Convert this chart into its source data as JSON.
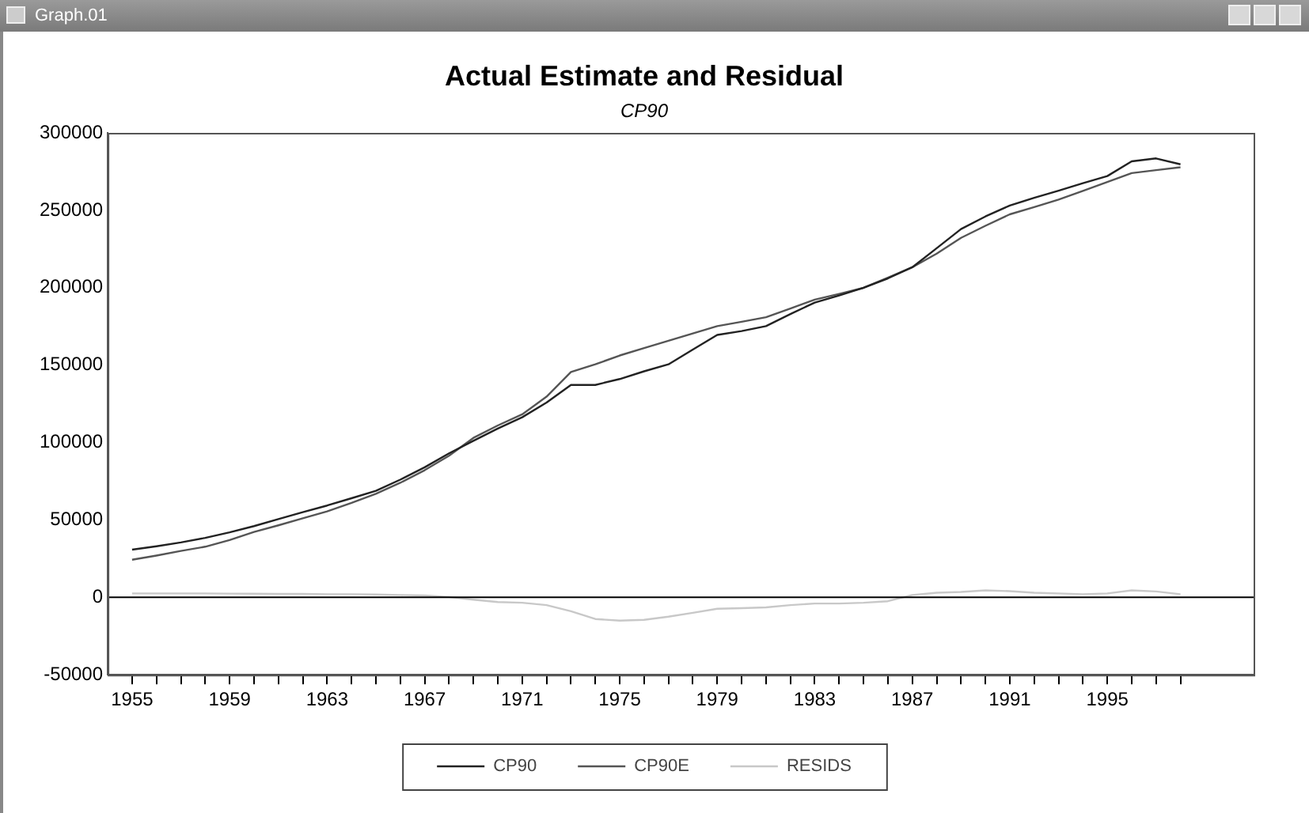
{
  "chart_data": {
    "type": "line",
    "title": "Actual Estimate and Residual",
    "subtitle": "CP90",
    "annotations": [
      "Graph.01"
    ],
    "x": [
      1955,
      1956,
      1957,
      1958,
      1959,
      1960,
      1961,
      1962,
      1963,
      1964,
      1965,
      1966,
      1967,
      1968,
      1969,
      1970,
      1971,
      1972,
      1973,
      1974,
      1975,
      1976,
      1977,
      1978,
      1979,
      1980,
      1981,
      1982,
      1983,
      1984,
      1985,
      1986,
      1987,
      1988,
      1989,
      1990,
      1991,
      1992,
      1993,
      1994,
      1995,
      1996,
      1997,
      1998
    ],
    "series": [
      {
        "name": "CP90",
        "color": "#222222",
        "values": [
          30800,
          33000,
          35500,
          38400,
          42000,
          46000,
          50500,
          55000,
          59300,
          64000,
          68800,
          76000,
          84000,
          93000,
          101100,
          109000,
          116300,
          125800,
          137200,
          137200,
          141000,
          146000,
          150500,
          160000,
          169500,
          172000,
          175200,
          183000,
          190400,
          195000,
          199900,
          206000,
          213200,
          225500,
          237900,
          246000,
          253100,
          258000,
          262600,
          267500,
          272100,
          281600,
          283500,
          279700
        ]
      },
      {
        "name": "CP90E",
        "color": "#555555",
        "values": [
          24300,
          27000,
          30000,
          32700,
          37000,
          42200,
          46500,
          51000,
          55500,
          61000,
          66900,
          74000,
          82100,
          91500,
          103000,
          111000,
          118200,
          129600,
          145500,
          150500,
          156200,
          161000,
          165700,
          170500,
          175200,
          178000,
          180900,
          186500,
          192300,
          196000,
          199900,
          206500,
          213200,
          222000,
          232200,
          240000,
          247400,
          252000,
          256900,
          262500,
          268300,
          274000,
          275900,
          277800
        ]
      },
      {
        "name": "RESIDS",
        "color": "#c8c8c8",
        "values": [
          2500,
          2500,
          2500,
          2500,
          2400,
          2300,
          2200,
          2200,
          2000,
          2000,
          1800,
          1500,
          1200,
          200,
          -1500,
          -3000,
          -3500,
          -5000,
          -9000,
          -14000,
          -15000,
          -14500,
          -12500,
          -10000,
          -7400,
          -7000,
          -6500,
          -5000,
          -4000,
          -4000,
          -3500,
          -2500,
          1500,
          3000,
          3500,
          4500,
          4000,
          3000,
          2500,
          2000,
          2500,
          4500,
          3800,
          2000
        ]
      }
    ],
    "xlim": [
      1954,
      2001
    ],
    "xticks": [
      1955,
      {
        "value": 1956,
        "label": null
      },
      {
        "value": 1957,
        "label": null
      },
      {
        "value": 1958,
        "label": null
      },
      1959,
      {
        "value": 1960,
        "label": null
      },
      {
        "value": 1961,
        "label": null
      },
      {
        "value": 1962,
        "label": null
      },
      1963,
      {
        "value": 1964,
        "label": null
      },
      {
        "value": 1965,
        "label": null
      },
      {
        "value": 1966,
        "label": null
      },
      1967,
      {
        "value": 1968,
        "label": null
      },
      {
        "value": 1969,
        "label": null
      },
      {
        "value": 1970,
        "label": null
      },
      1971,
      {
        "value": 1972,
        "label": null
      },
      {
        "value": 1973,
        "label": null
      },
      {
        "value": 1974,
        "label": null
      },
      1975,
      {
        "value": 1976,
        "label": null
      },
      {
        "value": 1977,
        "label": null
      },
      {
        "value": 1978,
        "label": null
      },
      1979,
      {
        "value": 1980,
        "label": null
      },
      {
        "value": 1981,
        "label": null
      },
      {
        "value": 1982,
        "label": null
      },
      1983,
      {
        "value": 1984,
        "label": null
      },
      {
        "value": 1985,
        "label": null
      },
      {
        "value": 1986,
        "label": null
      },
      1987,
      {
        "value": 1988,
        "label": null
      },
      {
        "value": 1989,
        "label": null
      },
      {
        "value": 1990,
        "label": null
      },
      1991,
      {
        "value": 1992,
        "label": null
      },
      {
        "value": 1993,
        "label": null
      },
      {
        "value": 1994,
        "label": null
      },
      1995,
      {
        "value": 1996,
        "label": null
      },
      {
        "value": 1997,
        "label": null
      },
      {
        "value": 1998,
        "label": null
      }
    ],
    "ylim": [
      -50000,
      300000
    ],
    "yticks": [
      -50000,
      0,
      50000,
      100000,
      150000,
      200000,
      250000,
      300000
    ],
    "ref_lines": [
      {
        "axis": "y",
        "value": 0,
        "color": "#000000"
      }
    ],
    "grid": false,
    "legend": "bottom",
    "marker": "none",
    "line_style": "solid"
  }
}
